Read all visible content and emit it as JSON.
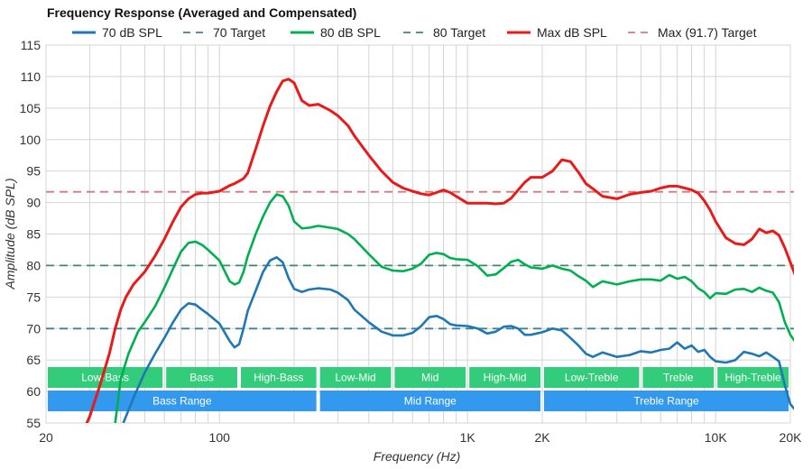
{
  "chart_data": {
    "type": "line",
    "title": "Frequency Response (Averaged and Compensated)",
    "xlabel": "Frequency (Hz)",
    "ylabel": "Amplitude (dB SPL)",
    "xscale": "log",
    "xlim": [
      20,
      20000
    ],
    "ylim": [
      55,
      115
    ],
    "grid": true,
    "legend_placement": "top",
    "x_ticks": [
      {
        "value": 20,
        "label": "20"
      },
      {
        "value": 100,
        "label": "100"
      },
      {
        "value": 1000,
        "label": "1K"
      },
      {
        "value": 2000,
        "label": "2K"
      },
      {
        "value": 10000,
        "label": "10K"
      },
      {
        "value": 20000,
        "label": "20K"
      }
    ],
    "y_ticks": [
      55,
      60,
      65,
      70,
      75,
      80,
      85,
      90,
      95,
      100,
      105,
      110,
      115
    ],
    "series": [
      {
        "name": "70 dB SPL",
        "color": "#1f77b4",
        "style": "solid",
        "points": [
          [
            41,
            55
          ],
          [
            45,
            59
          ],
          [
            50,
            63
          ],
          [
            55,
            66
          ],
          [
            60,
            68.5
          ],
          [
            65,
            71
          ],
          [
            70,
            73
          ],
          [
            75,
            74
          ],
          [
            80,
            73.8
          ],
          [
            85,
            73
          ],
          [
            90,
            72.3
          ],
          [
            100,
            70.8
          ],
          [
            110,
            68
          ],
          [
            115,
            67
          ],
          [
            120,
            67.5
          ],
          [
            125,
            70
          ],
          [
            130,
            72.8
          ],
          [
            140,
            76
          ],
          [
            150,
            79
          ],
          [
            160,
            80.8
          ],
          [
            170,
            81.3
          ],
          [
            180,
            80.5
          ],
          [
            190,
            78
          ],
          [
            200,
            76.3
          ],
          [
            215,
            75.8
          ],
          [
            230,
            76.2
          ],
          [
            250,
            76.4
          ],
          [
            280,
            76.2
          ],
          [
            300,
            75.7
          ],
          [
            330,
            74.5
          ],
          [
            350,
            73
          ],
          [
            400,
            71
          ],
          [
            450,
            69.5
          ],
          [
            500,
            68.9
          ],
          [
            550,
            68.9
          ],
          [
            600,
            69.3
          ],
          [
            650,
            70.4
          ],
          [
            700,
            71.8
          ],
          [
            750,
            72
          ],
          [
            800,
            71.5
          ],
          [
            850,
            70.7
          ],
          [
            900,
            70.5
          ],
          [
            1000,
            70.4
          ],
          [
            1100,
            70
          ],
          [
            1200,
            69.2
          ],
          [
            1300,
            69.5
          ],
          [
            1400,
            70.3
          ],
          [
            1500,
            70.4
          ],
          [
            1600,
            70
          ],
          [
            1700,
            69
          ],
          [
            1800,
            69
          ],
          [
            2000,
            69.4
          ],
          [
            2200,
            70
          ],
          [
            2400,
            69.7
          ],
          [
            2600,
            68.5
          ],
          [
            2800,
            67.3
          ],
          [
            3000,
            66
          ],
          [
            3200,
            65.5
          ],
          [
            3500,
            66.2
          ],
          [
            4000,
            65.5
          ],
          [
            4500,
            65.8
          ],
          [
            5000,
            66.4
          ],
          [
            5500,
            66.2
          ],
          [
            6000,
            66.6
          ],
          [
            6500,
            66.8
          ],
          [
            7000,
            67.8
          ],
          [
            7500,
            66.8
          ],
          [
            8000,
            67.3
          ],
          [
            8500,
            66.3
          ],
          [
            9000,
            66.6
          ],
          [
            9500,
            65.5
          ],
          [
            10000,
            64.8
          ],
          [
            11000,
            64.6
          ],
          [
            12000,
            65
          ],
          [
            13000,
            66.3
          ],
          [
            14000,
            66
          ],
          [
            15000,
            65.6
          ],
          [
            16000,
            66.2
          ],
          [
            17000,
            65.5
          ],
          [
            18000,
            64.8
          ],
          [
            19000,
            61
          ],
          [
            20000,
            58
          ],
          [
            21000,
            57
          ]
        ]
      },
      {
        "name": "70 Target",
        "color": "#3f7fa0",
        "style": "dashed",
        "points": [
          [
            20,
            70
          ],
          [
            21000,
            70
          ]
        ]
      },
      {
        "name": "80 dB SPL",
        "color": "#00b050",
        "style": "solid",
        "points": [
          [
            38,
            55
          ],
          [
            40,
            62
          ],
          [
            43,
            66
          ],
          [
            47,
            69.5
          ],
          [
            50,
            71
          ],
          [
            55,
            73.5
          ],
          [
            60,
            76.5
          ],
          [
            65,
            79.5
          ],
          [
            70,
            82.2
          ],
          [
            75,
            83.6
          ],
          [
            80,
            83.8
          ],
          [
            85,
            83.3
          ],
          [
            90,
            82.5
          ],
          [
            100,
            80.8
          ],
          [
            110,
            77.5
          ],
          [
            115,
            77
          ],
          [
            120,
            77.3
          ],
          [
            125,
            79
          ],
          [
            130,
            81.5
          ],
          [
            140,
            85
          ],
          [
            150,
            87.8
          ],
          [
            160,
            90
          ],
          [
            170,
            91.3
          ],
          [
            180,
            91
          ],
          [
            190,
            89.5
          ],
          [
            200,
            87
          ],
          [
            215,
            85.9
          ],
          [
            230,
            86
          ],
          [
            250,
            86.3
          ],
          [
            280,
            86
          ],
          [
            300,
            85.8
          ],
          [
            330,
            85
          ],
          [
            350,
            84.2
          ],
          [
            400,
            81.8
          ],
          [
            450,
            79.8
          ],
          [
            500,
            79.2
          ],
          [
            550,
            79.1
          ],
          [
            600,
            79.5
          ],
          [
            650,
            80.3
          ],
          [
            700,
            81.7
          ],
          [
            750,
            82
          ],
          [
            800,
            81.8
          ],
          [
            850,
            81.2
          ],
          [
            900,
            81
          ],
          [
            1000,
            80.9
          ],
          [
            1100,
            79.9
          ],
          [
            1200,
            78.4
          ],
          [
            1300,
            78.6
          ],
          [
            1400,
            79.6
          ],
          [
            1500,
            80.6
          ],
          [
            1600,
            80.9
          ],
          [
            1700,
            80.2
          ],
          [
            1800,
            79.7
          ],
          [
            2000,
            79.5
          ],
          [
            2200,
            80
          ],
          [
            2400,
            79.5
          ],
          [
            2600,
            79.2
          ],
          [
            2800,
            78.3
          ],
          [
            3000,
            77.6
          ],
          [
            3200,
            76.6
          ],
          [
            3500,
            77.5
          ],
          [
            4000,
            77
          ],
          [
            4500,
            77.5
          ],
          [
            5000,
            77.8
          ],
          [
            5500,
            77.8
          ],
          [
            6000,
            77.6
          ],
          [
            6500,
            78.5
          ],
          [
            7000,
            77.9
          ],
          [
            7500,
            78.2
          ],
          [
            8000,
            77.5
          ],
          [
            8500,
            76.4
          ],
          [
            9000,
            75.8
          ],
          [
            9500,
            74.8
          ],
          [
            10000,
            75.6
          ],
          [
            11000,
            75.5
          ],
          [
            12000,
            76.2
          ],
          [
            13000,
            76.3
          ],
          [
            14000,
            75.8
          ],
          [
            15000,
            76.5
          ],
          [
            16000,
            76
          ],
          [
            17000,
            75.7
          ],
          [
            18000,
            74.2
          ],
          [
            19000,
            71
          ],
          [
            20000,
            69
          ],
          [
            21000,
            67.8
          ]
        ]
      },
      {
        "name": "80 Target",
        "color": "#3a8a6a",
        "style": "dashed",
        "points": [
          [
            20,
            80
          ],
          [
            21000,
            80
          ]
        ]
      },
      {
        "name": "Max dB SPL",
        "color": "#e81a1a",
        "style": "solid",
        "points": [
          [
            27,
            52
          ],
          [
            30,
            56
          ],
          [
            33,
            61
          ],
          [
            36,
            66
          ],
          [
            38,
            70
          ],
          [
            40,
            73
          ],
          [
            42,
            75
          ],
          [
            45,
            77
          ],
          [
            50,
            79
          ],
          [
            55,
            81.5
          ],
          [
            60,
            84.2
          ],
          [
            65,
            87
          ],
          [
            70,
            89.3
          ],
          [
            75,
            90.6
          ],
          [
            80,
            91.3
          ],
          [
            85,
            91.5
          ],
          [
            90,
            91.5
          ],
          [
            100,
            91.8
          ],
          [
            110,
            92.7
          ],
          [
            115,
            93
          ],
          [
            120,
            93.4
          ],
          [
            125,
            93.8
          ],
          [
            130,
            94.7
          ],
          [
            140,
            98.5
          ],
          [
            150,
            102.2
          ],
          [
            160,
            105.3
          ],
          [
            170,
            107.6
          ],
          [
            180,
            109.3
          ],
          [
            190,
            109.6
          ],
          [
            200,
            109
          ],
          [
            215,
            106.2
          ],
          [
            230,
            105.4
          ],
          [
            250,
            105.6
          ],
          [
            280,
            104.6
          ],
          [
            300,
            103.8
          ],
          [
            330,
            102.2
          ],
          [
            350,
            100.6
          ],
          [
            400,
            97.5
          ],
          [
            450,
            95
          ],
          [
            500,
            93.2
          ],
          [
            550,
            92.3
          ],
          [
            600,
            91.8
          ],
          [
            650,
            91.4
          ],
          [
            700,
            91.2
          ],
          [
            750,
            91.6
          ],
          [
            800,
            92
          ],
          [
            850,
            91.6
          ],
          [
            900,
            91
          ],
          [
            1000,
            89.9
          ],
          [
            1100,
            89.9
          ],
          [
            1200,
            89.9
          ],
          [
            1300,
            89.8
          ],
          [
            1400,
            89.9
          ],
          [
            1500,
            90.7
          ],
          [
            1600,
            92
          ],
          [
            1700,
            93.2
          ],
          [
            1800,
            94
          ],
          [
            2000,
            94
          ],
          [
            2200,
            95
          ],
          [
            2400,
            96.8
          ],
          [
            2600,
            96.5
          ],
          [
            2800,
            94.8
          ],
          [
            3000,
            93
          ],
          [
            3200,
            92.2
          ],
          [
            3500,
            91
          ],
          [
            4000,
            90.6
          ],
          [
            4500,
            91.3
          ],
          [
            5000,
            91.6
          ],
          [
            5500,
            91.8
          ],
          [
            6000,
            92.3
          ],
          [
            6500,
            92.6
          ],
          [
            7000,
            92.6
          ],
          [
            7500,
            92.3
          ],
          [
            8000,
            92
          ],
          [
            8500,
            91.5
          ],
          [
            9000,
            90.3
          ],
          [
            9500,
            88.8
          ],
          [
            10000,
            87
          ],
          [
            11000,
            84.4
          ],
          [
            12000,
            83.5
          ],
          [
            13000,
            83.3
          ],
          [
            14000,
            84.2
          ],
          [
            15000,
            85.8
          ],
          [
            16000,
            85.2
          ],
          [
            17000,
            85.5
          ],
          [
            18000,
            84.8
          ],
          [
            19000,
            82.8
          ],
          [
            20000,
            80.5
          ],
          [
            21000,
            78.3
          ]
        ]
      },
      {
        "name": "Max (91.7) Target",
        "color": "#d47a7a",
        "style": "dashed",
        "points": [
          [
            20,
            91.7
          ],
          [
            21000,
            91.7
          ]
        ]
      }
    ],
    "bands_top": [
      {
        "label": "Low-Bass",
        "from": 20,
        "to": 60
      },
      {
        "label": "Bass",
        "from": 60,
        "to": 120
      },
      {
        "label": "High-Bass",
        "from": 120,
        "to": 250
      },
      {
        "label": "Low-Mid",
        "from": 250,
        "to": 500
      },
      {
        "label": "Mid",
        "from": 500,
        "to": 1000
      },
      {
        "label": "High-Mid",
        "from": 1000,
        "to": 2000
      },
      {
        "label": "Low-Treble",
        "from": 2000,
        "to": 5000
      },
      {
        "label": "Treble",
        "from": 5000,
        "to": 10000
      },
      {
        "label": "High-Treble",
        "from": 10000,
        "to": 20000
      }
    ],
    "bands_bottom": [
      {
        "label": "Bass Range",
        "from": 20,
        "to": 250
      },
      {
        "label": "Mid Range",
        "from": 250,
        "to": 2000
      },
      {
        "label": "Treble Range",
        "from": 2000,
        "to": 20000
      }
    ],
    "band_colors": {
      "top": "#33cc7a",
      "bottom": "#3399ee"
    }
  }
}
